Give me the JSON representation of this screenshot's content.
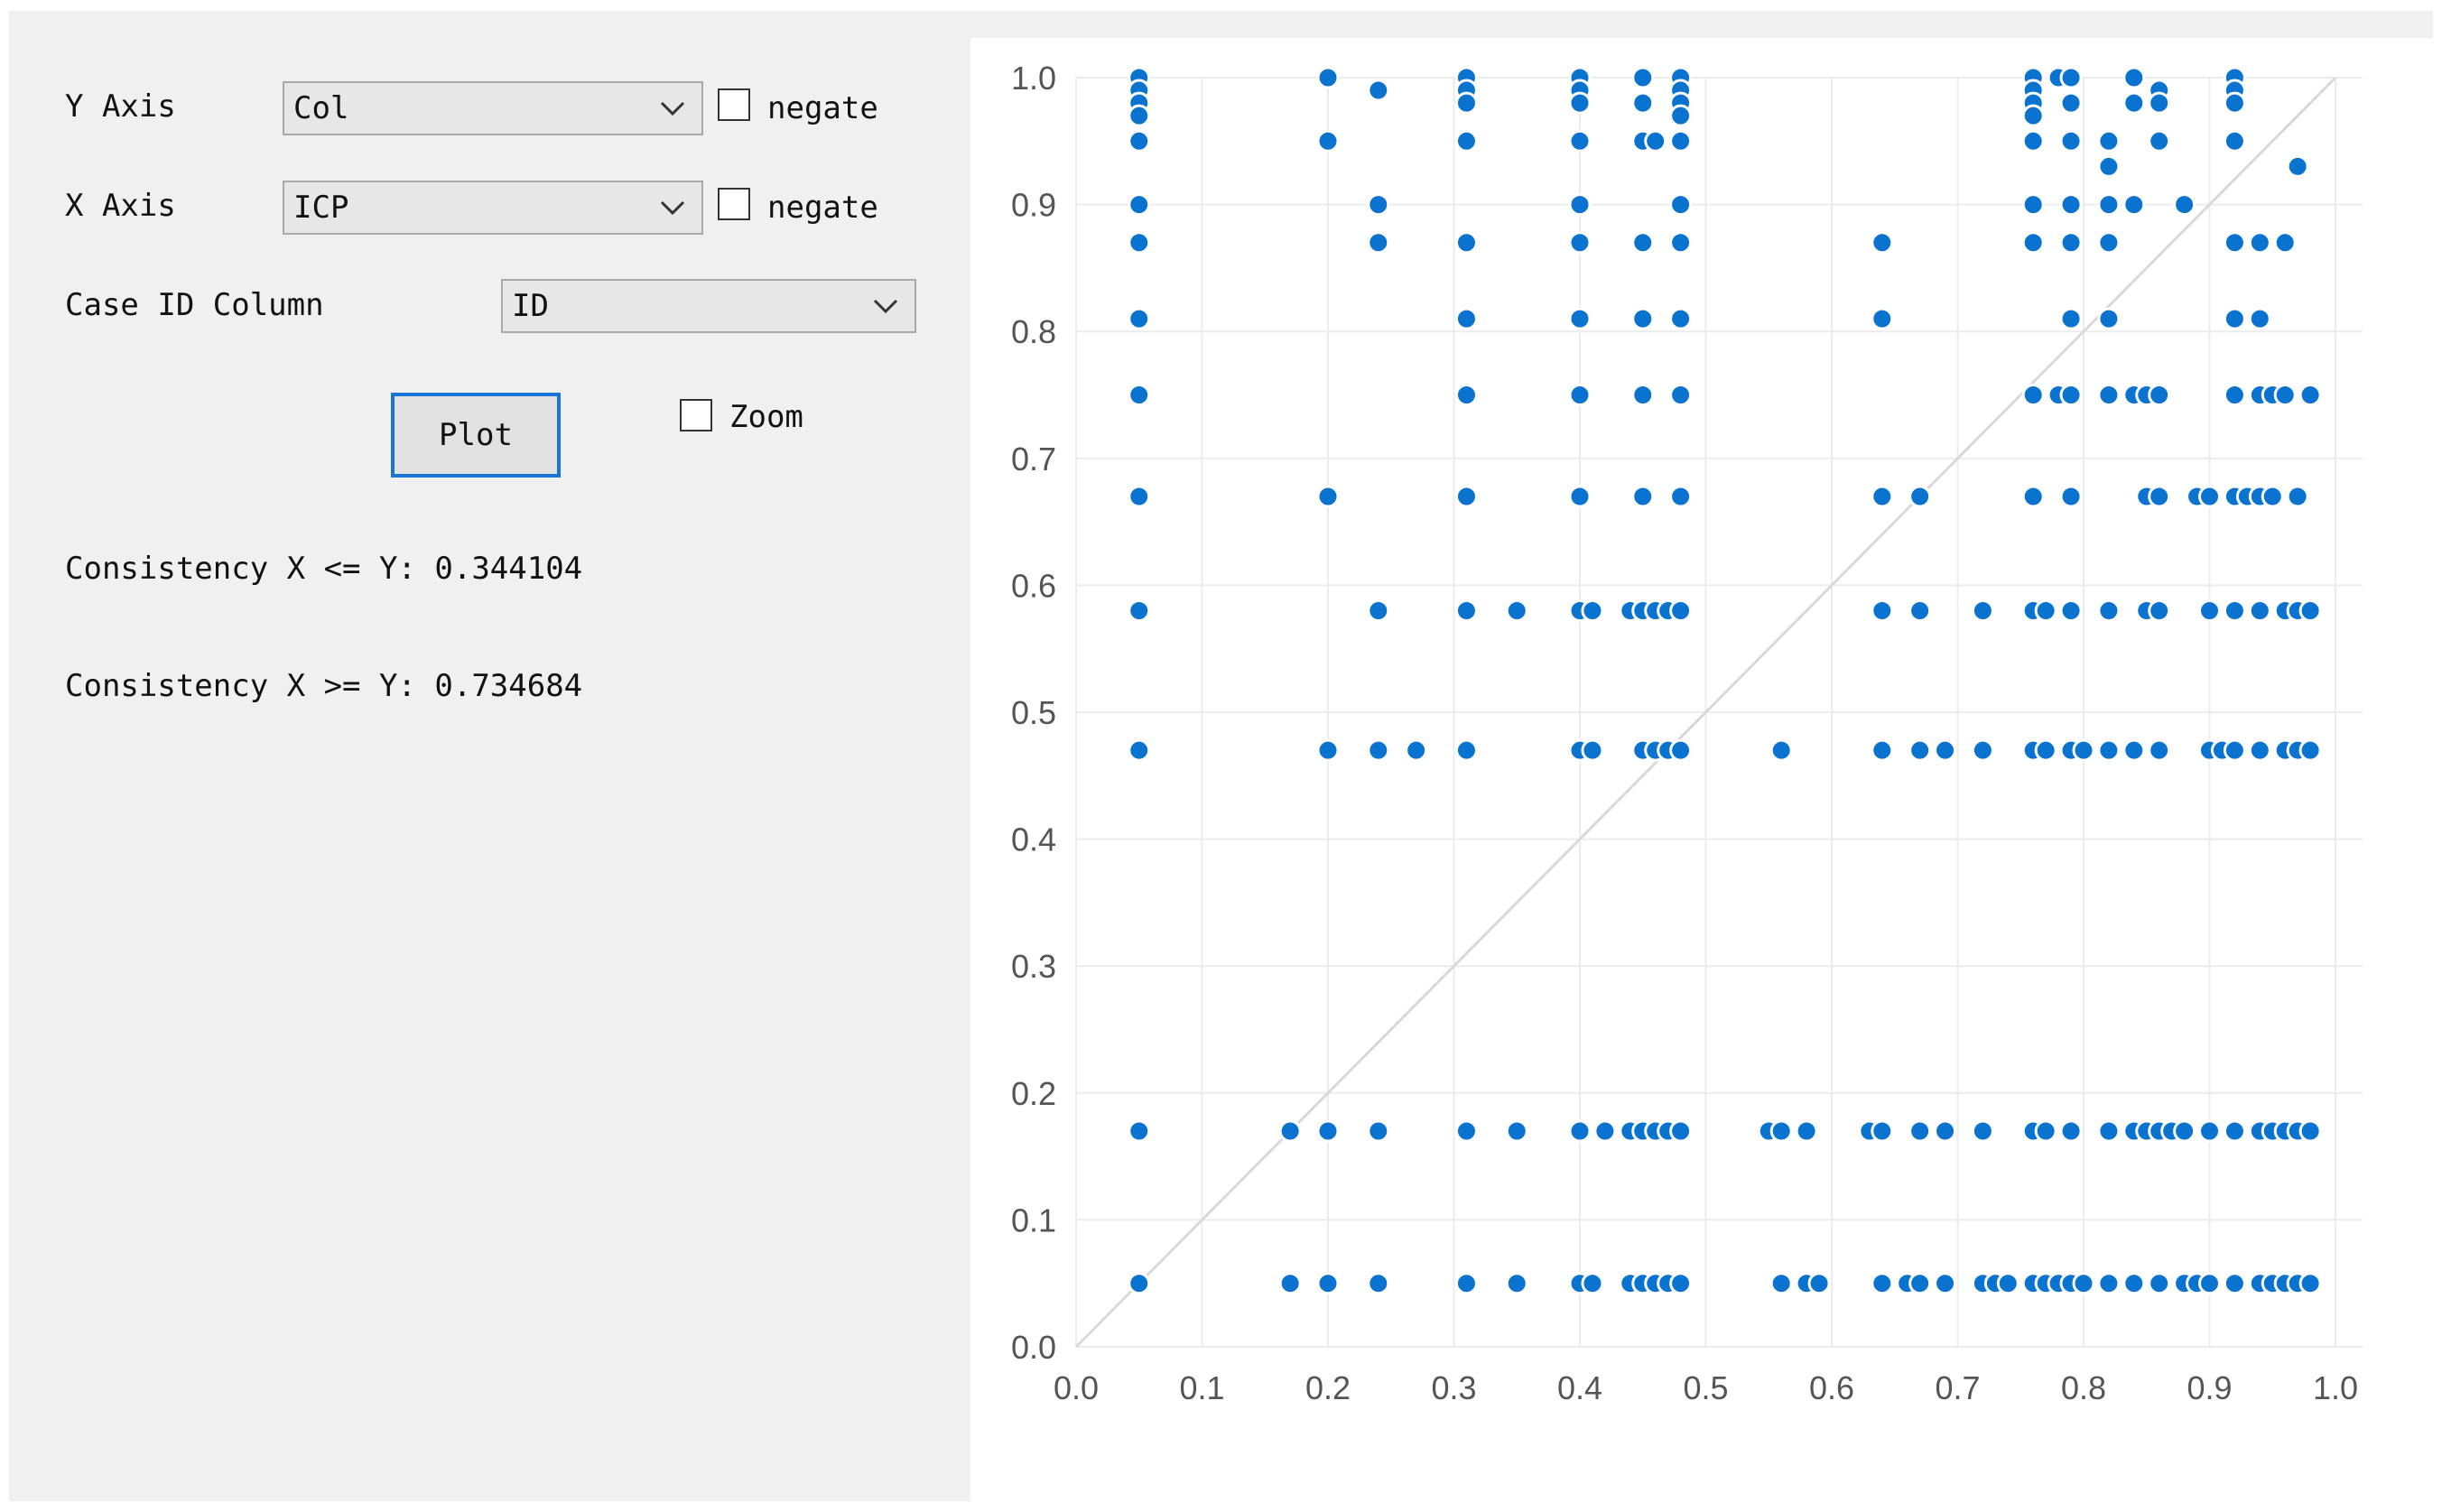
{
  "controls": {
    "y_axis": {
      "label": "Y Axis",
      "value": "Col",
      "negate_label": "negate",
      "negate_checked": false
    },
    "x_axis": {
      "label": "X Axis",
      "value": "ICP",
      "negate_label": "negate",
      "negate_checked": false
    },
    "case_id": {
      "label": "Case ID Column",
      "value": "ID"
    },
    "plot_button": "Plot",
    "zoom_label": "Zoom",
    "zoom_checked": false,
    "consistency_le": "Consistency X <= Y: 0.344104",
    "consistency_ge": "Consistency X >= Y: 0.734684"
  },
  "colors": {
    "point": "#0a73d0",
    "diagonal": "#d9d9d9",
    "grid": "#ececec",
    "tick": "#555555",
    "focus": "#1a73d6"
  },
  "chart_data": {
    "type": "scatter",
    "xlim": [
      0,
      1
    ],
    "ylim": [
      0,
      1
    ],
    "xticks": [
      "0.0",
      "0.1",
      "0.2",
      "0.3",
      "0.4",
      "0.5",
      "0.6",
      "0.7",
      "0.8",
      "0.9",
      "1.0"
    ],
    "yticks": [
      "0.0",
      "0.1",
      "0.2",
      "0.3",
      "0.4",
      "0.5",
      "0.6",
      "0.7",
      "0.8",
      "0.9",
      "1.0"
    ],
    "grid": true,
    "diagonal": true,
    "points": [
      [
        0.05,
        1.0
      ],
      [
        0.05,
        0.99
      ],
      [
        0.05,
        0.98
      ],
      [
        0.05,
        0.97
      ],
      [
        0.05,
        0.95
      ],
      [
        0.05,
        0.9
      ],
      [
        0.05,
        0.87
      ],
      [
        0.05,
        0.81
      ],
      [
        0.05,
        0.75
      ],
      [
        0.05,
        0.67
      ],
      [
        0.05,
        0.58
      ],
      [
        0.05,
        0.47
      ],
      [
        0.05,
        0.17
      ],
      [
        0.05,
        0.05
      ],
      [
        0.2,
        1.0
      ],
      [
        0.2,
        0.95
      ],
      [
        0.2,
        0.67
      ],
      [
        0.2,
        0.47
      ],
      [
        0.2,
        0.17
      ],
      [
        0.2,
        0.05
      ],
      [
        0.17,
        0.17
      ],
      [
        0.17,
        0.05
      ],
      [
        0.24,
        0.99
      ],
      [
        0.24,
        0.9
      ],
      [
        0.24,
        0.87
      ],
      [
        0.24,
        0.58
      ],
      [
        0.24,
        0.47
      ],
      [
        0.24,
        0.17
      ],
      [
        0.24,
        0.05
      ],
      [
        0.27,
        0.47
      ],
      [
        0.31,
        1.0
      ],
      [
        0.31,
        0.99
      ],
      [
        0.31,
        0.98
      ],
      [
        0.31,
        0.95
      ],
      [
        0.31,
        0.87
      ],
      [
        0.31,
        0.81
      ],
      [
        0.31,
        0.75
      ],
      [
        0.31,
        0.67
      ],
      [
        0.31,
        0.58
      ],
      [
        0.31,
        0.47
      ],
      [
        0.31,
        0.17
      ],
      [
        0.31,
        0.05
      ],
      [
        0.35,
        0.58
      ],
      [
        0.35,
        0.17
      ],
      [
        0.35,
        0.05
      ],
      [
        0.4,
        1.0
      ],
      [
        0.4,
        0.99
      ],
      [
        0.4,
        0.98
      ],
      [
        0.4,
        0.95
      ],
      [
        0.4,
        0.9
      ],
      [
        0.4,
        0.87
      ],
      [
        0.4,
        0.81
      ],
      [
        0.4,
        0.75
      ],
      [
        0.4,
        0.67
      ],
      [
        0.4,
        0.58
      ],
      [
        0.4,
        0.47
      ],
      [
        0.4,
        0.17
      ],
      [
        0.4,
        0.05
      ],
      [
        0.41,
        0.58
      ],
      [
        0.41,
        0.47
      ],
      [
        0.41,
        0.05
      ],
      [
        0.42,
        0.17
      ],
      [
        0.44,
        0.58
      ],
      [
        0.44,
        0.17
      ],
      [
        0.44,
        0.05
      ],
      [
        0.45,
        1.0
      ],
      [
        0.45,
        0.98
      ],
      [
        0.45,
        0.95
      ],
      [
        0.45,
        0.87
      ],
      [
        0.45,
        0.81
      ],
      [
        0.45,
        0.75
      ],
      [
        0.45,
        0.67
      ],
      [
        0.45,
        0.58
      ],
      [
        0.45,
        0.47
      ],
      [
        0.45,
        0.17
      ],
      [
        0.45,
        0.05
      ],
      [
        0.46,
        0.95
      ],
      [
        0.46,
        0.58
      ],
      [
        0.46,
        0.47
      ],
      [
        0.46,
        0.17
      ],
      [
        0.46,
        0.05
      ],
      [
        0.47,
        0.58
      ],
      [
        0.47,
        0.47
      ],
      [
        0.47,
        0.17
      ],
      [
        0.47,
        0.05
      ],
      [
        0.48,
        1.0
      ],
      [
        0.48,
        0.99
      ],
      [
        0.48,
        0.98
      ],
      [
        0.48,
        0.97
      ],
      [
        0.48,
        0.95
      ],
      [
        0.48,
        0.9
      ],
      [
        0.48,
        0.87
      ],
      [
        0.48,
        0.81
      ],
      [
        0.48,
        0.75
      ],
      [
        0.48,
        0.67
      ],
      [
        0.48,
        0.58
      ],
      [
        0.48,
        0.47
      ],
      [
        0.48,
        0.17
      ],
      [
        0.48,
        0.05
      ],
      [
        0.55,
        0.17
      ],
      [
        0.56,
        0.47
      ],
      [
        0.56,
        0.17
      ],
      [
        0.56,
        0.05
      ],
      [
        0.58,
        0.17
      ],
      [
        0.58,
        0.05
      ],
      [
        0.59,
        0.05
      ],
      [
        0.63,
        0.17
      ],
      [
        0.64,
        0.87
      ],
      [
        0.64,
        0.81
      ],
      [
        0.64,
        0.67
      ],
      [
        0.64,
        0.58
      ],
      [
        0.64,
        0.47
      ],
      [
        0.64,
        0.17
      ],
      [
        0.64,
        0.05
      ],
      [
        0.66,
        0.05
      ],
      [
        0.67,
        0.67
      ],
      [
        0.67,
        0.58
      ],
      [
        0.67,
        0.47
      ],
      [
        0.67,
        0.17
      ],
      [
        0.67,
        0.05
      ],
      [
        0.69,
        0.47
      ],
      [
        0.69,
        0.17
      ],
      [
        0.69,
        0.05
      ],
      [
        0.72,
        0.58
      ],
      [
        0.72,
        0.47
      ],
      [
        0.72,
        0.17
      ],
      [
        0.72,
        0.05
      ],
      [
        0.73,
        0.05
      ],
      [
        0.74,
        0.05
      ],
      [
        0.76,
        1.0
      ],
      [
        0.76,
        0.99
      ],
      [
        0.76,
        0.98
      ],
      [
        0.76,
        0.97
      ],
      [
        0.76,
        0.95
      ],
      [
        0.76,
        0.9
      ],
      [
        0.76,
        0.87
      ],
      [
        0.76,
        0.75
      ],
      [
        0.76,
        0.67
      ],
      [
        0.76,
        0.58
      ],
      [
        0.76,
        0.47
      ],
      [
        0.76,
        0.17
      ],
      [
        0.76,
        0.05
      ],
      [
        0.77,
        0.58
      ],
      [
        0.77,
        0.47
      ],
      [
        0.77,
        0.17
      ],
      [
        0.77,
        0.05
      ],
      [
        0.78,
        1.0
      ],
      [
        0.78,
        0.75
      ],
      [
        0.78,
        0.05
      ],
      [
        0.79,
        1.0
      ],
      [
        0.79,
        0.98
      ],
      [
        0.79,
        0.95
      ],
      [
        0.79,
        0.9
      ],
      [
        0.79,
        0.87
      ],
      [
        0.79,
        0.81
      ],
      [
        0.79,
        0.75
      ],
      [
        0.79,
        0.67
      ],
      [
        0.79,
        0.58
      ],
      [
        0.79,
        0.47
      ],
      [
        0.79,
        0.17
      ],
      [
        0.79,
        0.05
      ],
      [
        0.8,
        0.47
      ],
      [
        0.8,
        0.05
      ],
      [
        0.82,
        0.95
      ],
      [
        0.82,
        0.93
      ],
      [
        0.82,
        0.9
      ],
      [
        0.82,
        0.87
      ],
      [
        0.82,
        0.81
      ],
      [
        0.82,
        0.75
      ],
      [
        0.82,
        0.58
      ],
      [
        0.82,
        0.47
      ],
      [
        0.82,
        0.17
      ],
      [
        0.82,
        0.05
      ],
      [
        0.84,
        1.0
      ],
      [
        0.84,
        0.98
      ],
      [
        0.84,
        0.9
      ],
      [
        0.84,
        0.75
      ],
      [
        0.84,
        0.47
      ],
      [
        0.84,
        0.17
      ],
      [
        0.84,
        0.05
      ],
      [
        0.85,
        0.75
      ],
      [
        0.85,
        0.67
      ],
      [
        0.85,
        0.58
      ],
      [
        0.85,
        0.17
      ],
      [
        0.86,
        0.99
      ],
      [
        0.86,
        0.98
      ],
      [
        0.86,
        0.95
      ],
      [
        0.86,
        0.75
      ],
      [
        0.86,
        0.67
      ],
      [
        0.86,
        0.58
      ],
      [
        0.86,
        0.47
      ],
      [
        0.86,
        0.17
      ],
      [
        0.86,
        0.05
      ],
      [
        0.87,
        0.17
      ],
      [
        0.88,
        0.9
      ],
      [
        0.88,
        0.17
      ],
      [
        0.88,
        0.05
      ],
      [
        0.89,
        0.67
      ],
      [
        0.89,
        0.05
      ],
      [
        0.9,
        0.67
      ],
      [
        0.9,
        0.58
      ],
      [
        0.9,
        0.47
      ],
      [
        0.9,
        0.17
      ],
      [
        0.9,
        0.05
      ],
      [
        0.91,
        0.47
      ],
      [
        0.92,
        1.0
      ],
      [
        0.92,
        0.99
      ],
      [
        0.92,
        0.98
      ],
      [
        0.92,
        0.95
      ],
      [
        0.92,
        0.87
      ],
      [
        0.92,
        0.81
      ],
      [
        0.92,
        0.75
      ],
      [
        0.92,
        0.67
      ],
      [
        0.92,
        0.58
      ],
      [
        0.92,
        0.47
      ],
      [
        0.92,
        0.17
      ],
      [
        0.92,
        0.05
      ],
      [
        0.93,
        0.67
      ],
      [
        0.94,
        0.87
      ],
      [
        0.94,
        0.81
      ],
      [
        0.94,
        0.75
      ],
      [
        0.94,
        0.67
      ],
      [
        0.94,
        0.58
      ],
      [
        0.94,
        0.47
      ],
      [
        0.94,
        0.17
      ],
      [
        0.94,
        0.05
      ],
      [
        0.95,
        0.75
      ],
      [
        0.95,
        0.67
      ],
      [
        0.95,
        0.17
      ],
      [
        0.95,
        0.05
      ],
      [
        0.96,
        0.87
      ],
      [
        0.96,
        0.75
      ],
      [
        0.96,
        0.58
      ],
      [
        0.96,
        0.47
      ],
      [
        0.96,
        0.17
      ],
      [
        0.96,
        0.05
      ],
      [
        0.97,
        0.93
      ],
      [
        0.97,
        0.67
      ],
      [
        0.97,
        0.58
      ],
      [
        0.97,
        0.47
      ],
      [
        0.97,
        0.17
      ],
      [
        0.97,
        0.05
      ],
      [
        0.98,
        0.75
      ],
      [
        0.98,
        0.58
      ],
      [
        0.98,
        0.47
      ],
      [
        0.98,
        0.17
      ],
      [
        0.98,
        0.05
      ]
    ]
  }
}
